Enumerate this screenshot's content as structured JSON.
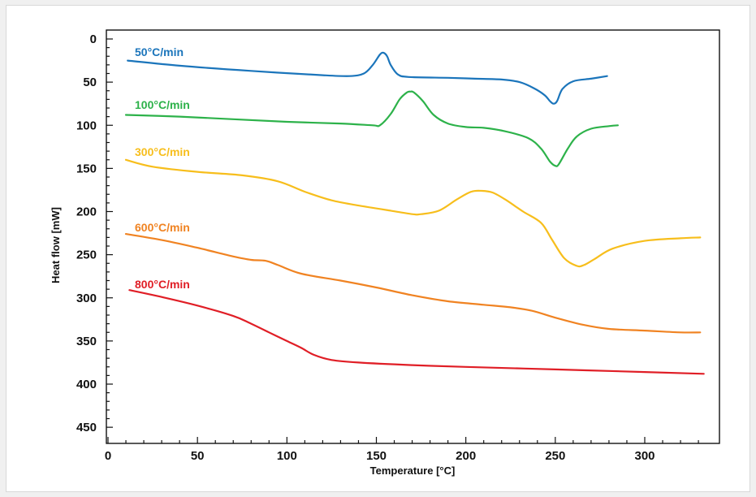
{
  "chart_data": {
    "type": "line",
    "title": "",
    "xlabel": "Temperature [°C]",
    "ylabel": "Heat flow [mW]",
    "xlim": [
      10,
      335
    ],
    "ylim": [
      460,
      -5
    ],
    "y_inverted": true,
    "x_ticks": [
      0,
      50,
      100,
      150,
      200,
      250,
      300
    ],
    "y_ticks": [
      0,
      50,
      100,
      150,
      200,
      250,
      300,
      350,
      400,
      450
    ],
    "x_tick_labels": [
      "0",
      "50",
      "100",
      "150",
      "200",
      "250",
      "300"
    ],
    "y_tick_labels": [
      "0",
      "50",
      "100",
      "150",
      "200",
      "250",
      "300",
      "350",
      "400",
      "450"
    ],
    "grid": false,
    "series": [
      {
        "name": "50°C/min",
        "color": "#1b75bb",
        "points": [
          [
            11,
            25
          ],
          [
            40,
            31
          ],
          [
            80,
            37
          ],
          [
            120,
            42
          ],
          [
            135,
            43
          ],
          [
            143,
            40
          ],
          [
            148,
            30
          ],
          [
            152,
            18
          ],
          [
            154,
            16
          ],
          [
            156,
            20
          ],
          [
            158,
            30
          ],
          [
            162,
            41
          ],
          [
            168,
            44
          ],
          [
            190,
            45
          ],
          [
            205,
            46
          ],
          [
            220,
            47
          ],
          [
            230,
            50
          ],
          [
            238,
            57
          ],
          [
            244,
            65
          ],
          [
            247,
            72
          ],
          [
            249,
            75
          ],
          [
            251,
            72
          ],
          [
            254,
            58
          ],
          [
            260,
            49
          ],
          [
            270,
            46
          ],
          [
            279,
            43
          ]
        ]
      },
      {
        "name": "100°C/min",
        "color": "#2db24a",
        "points": [
          [
            10,
            88
          ],
          [
            40,
            90
          ],
          [
            70,
            93
          ],
          [
            100,
            96
          ],
          [
            130,
            98
          ],
          [
            148,
            100
          ],
          [
            152,
            100
          ],
          [
            158,
            87
          ],
          [
            163,
            70
          ],
          [
            167,
            62
          ],
          [
            169,
            61
          ],
          [
            171,
            62
          ],
          [
            176,
            72
          ],
          [
            182,
            88
          ],
          [
            190,
            98
          ],
          [
            200,
            102
          ],
          [
            210,
            103
          ],
          [
            222,
            107
          ],
          [
            235,
            115
          ],
          [
            242,
            127
          ],
          [
            247,
            142
          ],
          [
            250,
            147
          ],
          [
            252,
            145
          ],
          [
            257,
            127
          ],
          [
            262,
            113
          ],
          [
            270,
            104
          ],
          [
            280,
            101
          ],
          [
            285,
            100
          ]
        ]
      },
      {
        "name": "300°C/min",
        "color": "#f7be1c",
        "points": [
          [
            10,
            140
          ],
          [
            25,
            148
          ],
          [
            50,
            154
          ],
          [
            75,
            158
          ],
          [
            95,
            165
          ],
          [
            110,
            177
          ],
          [
            125,
            187
          ],
          [
            140,
            193
          ],
          [
            158,
            199
          ],
          [
            170,
            203
          ],
          [
            175,
            203
          ],
          [
            185,
            199
          ],
          [
            195,
            186
          ],
          [
            203,
            177
          ],
          [
            209,
            176
          ],
          [
            215,
            178
          ],
          [
            222,
            186
          ],
          [
            232,
            200
          ],
          [
            242,
            213
          ],
          [
            248,
            232
          ],
          [
            255,
            254
          ],
          [
            262,
            263
          ],
          [
            266,
            262
          ],
          [
            272,
            255
          ],
          [
            282,
            243
          ],
          [
            300,
            234
          ],
          [
            320,
            231
          ],
          [
            331,
            230
          ]
        ]
      },
      {
        "name": "600°C/min",
        "color": "#f08322",
        "points": [
          [
            10,
            226
          ],
          [
            30,
            233
          ],
          [
            50,
            242
          ],
          [
            70,
            252
          ],
          [
            80,
            256
          ],
          [
            88,
            257
          ],
          [
            95,
            262
          ],
          [
            108,
            272
          ],
          [
            130,
            280
          ],
          [
            150,
            288
          ],
          [
            170,
            297
          ],
          [
            190,
            304
          ],
          [
            210,
            308
          ],
          [
            225,
            311
          ],
          [
            237,
            315
          ],
          [
            250,
            323
          ],
          [
            265,
            331
          ],
          [
            280,
            336
          ],
          [
            300,
            338
          ],
          [
            320,
            340
          ],
          [
            331,
            340
          ]
        ]
      },
      {
        "name": "800°C/min",
        "color": "#e01e26",
        "points": [
          [
            12,
            291
          ],
          [
            30,
            299
          ],
          [
            50,
            309
          ],
          [
            70,
            321
          ],
          [
            80,
            330
          ],
          [
            90,
            340
          ],
          [
            100,
            350
          ],
          [
            108,
            358
          ],
          [
            115,
            366
          ],
          [
            125,
            372
          ],
          [
            140,
            375
          ],
          [
            170,
            378
          ],
          [
            200,
            380
          ],
          [
            250,
            383
          ],
          [
            300,
            386
          ],
          [
            333,
            388
          ]
        ]
      }
    ]
  }
}
